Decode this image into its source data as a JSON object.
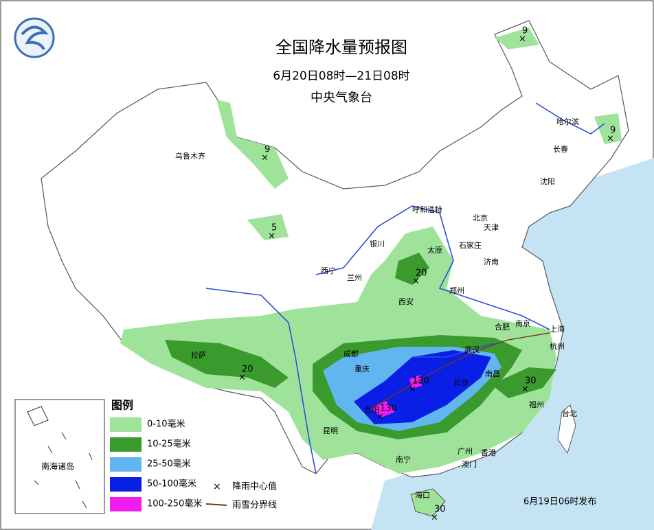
{
  "header": {
    "title": "全国降水量预报图",
    "period": "6月20日08时—21日08时",
    "issuer": "中央气象台"
  },
  "legend": {
    "title": "图例",
    "items": [
      {
        "label": "0-10毫米",
        "color": "#9fe39a"
      },
      {
        "label": "10-25毫米",
        "color": "#3a9a2e"
      },
      {
        "label": "25-50毫米",
        "color": "#62b6f0"
      },
      {
        "label": "50-100毫米",
        "color": "#0a1fe6"
      },
      {
        "label": "100-250毫米",
        "color": "#f01cf0"
      }
    ],
    "center_symbol": "降雨中心值",
    "snow_line": "雨雪分界线"
  },
  "rain_centers": [
    {
      "value": 9
    },
    {
      "value": 9
    },
    {
      "value": 9
    },
    {
      "value": 5
    },
    {
      "value": 20
    },
    {
      "value": 20
    },
    {
      "value": 120
    },
    {
      "value": 130
    },
    {
      "value": 30
    },
    {
      "value": 30
    }
  ],
  "cities": [
    "乌鲁木齐",
    "哈尔滨",
    "长春",
    "沈阳",
    "呼和浩特",
    "北京",
    "天津",
    "石家庄",
    "太原",
    "银川",
    "西宁",
    "兰州",
    "济南",
    "郑州",
    "西安",
    "合肥",
    "南京",
    "上海",
    "杭州",
    "成都",
    "重庆",
    "武汉",
    "长沙",
    "南昌",
    "贵阳",
    "昆明",
    "福州",
    "台北",
    "南宁",
    "广州",
    "香港",
    "澳门",
    "海口",
    "拉萨"
  ],
  "inset": {
    "label": "南海诸岛"
  },
  "footer": {
    "issued": "6月19日06时发布"
  }
}
